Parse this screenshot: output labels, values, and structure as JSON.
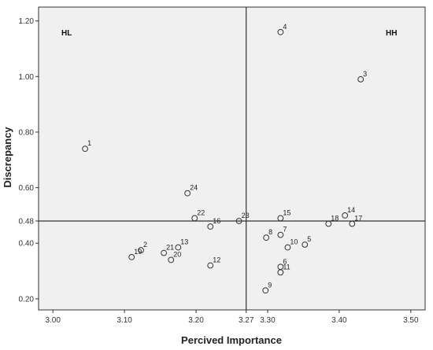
{
  "chart_data": {
    "type": "scatter",
    "xlabel": "Percived Importance",
    "ylabel": "Discrepancy",
    "xlim": [
      2.98,
      3.52
    ],
    "ylim": [
      0.16,
      1.25
    ],
    "x_ticks": [
      "3.00",
      "3.10",
      "3.20",
      "3.27",
      "3.30",
      "3.40",
      "3.50"
    ],
    "x_tick_values": [
      3.0,
      3.1,
      3.2,
      3.27,
      3.3,
      3.4,
      3.5
    ],
    "y_ticks": [
      "0.20",
      "0.40",
      "0.48",
      "0.60",
      "0.80",
      "1.00",
      "1.20"
    ],
    "y_tick_values": [
      0.2,
      0.4,
      0.48,
      0.6,
      0.8,
      1.0,
      1.2
    ],
    "x_reference": 3.27,
    "y_reference": 0.48,
    "quadrant_labels": {
      "top_left": "HL",
      "top_right": "HH"
    },
    "grid": false,
    "marker": "open-circle",
    "colors": {
      "plot_background": "#f0f0f0",
      "marker": "#333333",
      "reference_line": "#333333"
    },
    "points": [
      {
        "label": "1",
        "x": 3.045,
        "y": 0.74
      },
      {
        "label": "2",
        "x": 3.123,
        "y": 0.375
      },
      {
        "label": "3",
        "x": 3.43,
        "y": 0.99
      },
      {
        "label": "4",
        "x": 3.318,
        "y": 1.16
      },
      {
        "label": "5",
        "x": 3.352,
        "y": 0.395
      },
      {
        "label": "6",
        "x": 3.318,
        "y": 0.315
      },
      {
        "label": "7",
        "x": 3.318,
        "y": 0.43
      },
      {
        "label": "8",
        "x": 3.298,
        "y": 0.42
      },
      {
        "label": "9",
        "x": 3.297,
        "y": 0.23
      },
      {
        "label": "10",
        "x": 3.328,
        "y": 0.385
      },
      {
        "label": "11",
        "x": 3.318,
        "y": 0.295
      },
      {
        "label": "12",
        "x": 3.22,
        "y": 0.32
      },
      {
        "label": "13",
        "x": 3.175,
        "y": 0.385
      },
      {
        "label": "14",
        "x": 3.408,
        "y": 0.5
      },
      {
        "label": "15",
        "x": 3.318,
        "y": 0.49
      },
      {
        "label": "16",
        "x": 3.22,
        "y": 0.46
      },
      {
        "label": "17",
        "x": 3.418,
        "y": 0.47
      },
      {
        "label": "18",
        "x": 3.385,
        "y": 0.47
      },
      {
        "label": "19",
        "x": 3.11,
        "y": 0.35
      },
      {
        "label": "20",
        "x": 3.165,
        "y": 0.34
      },
      {
        "label": "21",
        "x": 3.155,
        "y": 0.365
      },
      {
        "label": "22",
        "x": 3.198,
        "y": 0.49
      },
      {
        "label": "23",
        "x": 3.26,
        "y": 0.48
      },
      {
        "label": "24",
        "x": 3.188,
        "y": 0.58
      }
    ]
  }
}
